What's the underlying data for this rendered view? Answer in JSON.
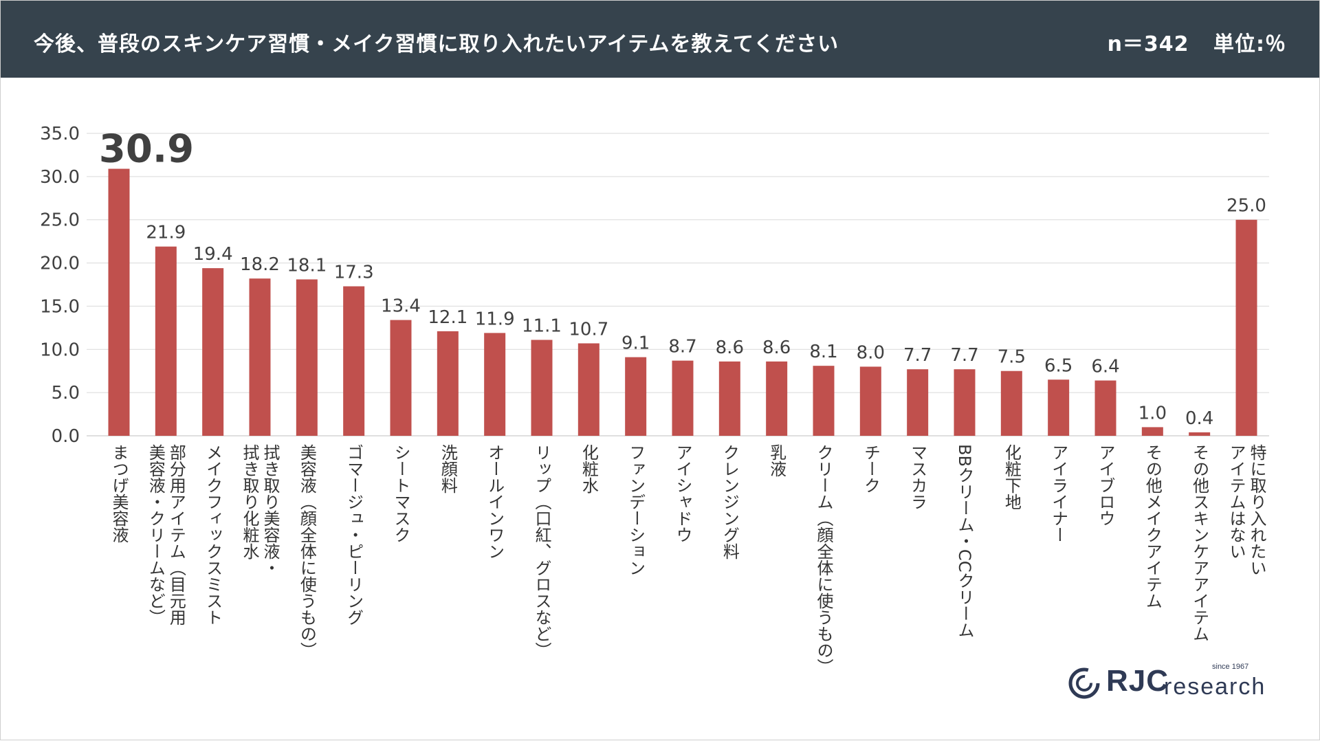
{
  "header": {
    "title": "今後、普段のスキンケア習慣・メイク習慣に取り入れたいアイテムを教えてください",
    "sample": "n＝342",
    "unit": "単位:％"
  },
  "logo": {
    "brand": "RJC",
    "sub": "research",
    "since": "since 1967"
  },
  "colors": {
    "bar": "#c0504d",
    "header_bg": "#36434d",
    "grid": "#d9d9d9"
  },
  "chart_data": {
    "type": "bar",
    "title": "今後、普段のスキンケア習慣・メイク習慣に取り入れたいアイテムを教えてください",
    "xlabel": "",
    "ylabel": "",
    "ylim": [
      0,
      35
    ],
    "yticks": [
      "0.0",
      "5.0",
      "10.0",
      "15.0",
      "20.0",
      "25.0",
      "30.0",
      "35.0"
    ],
    "grid": true,
    "categories": [
      [
        "まつげ美容液"
      ],
      [
        "部分用アイテム（目元用",
        "美容液・クリームなど）"
      ],
      [
        "メイクフィックスミスト"
      ],
      [
        "拭き取り美容液・",
        "拭き取り化粧水"
      ],
      [
        "美容液（顔全体に使うもの）"
      ],
      [
        "ゴマージュ・ピーリング"
      ],
      [
        "シートマスク"
      ],
      [
        "洗顔料"
      ],
      [
        "オールインワン"
      ],
      [
        "リップ（口紅、グロスなど）"
      ],
      [
        "化粧水"
      ],
      [
        "ファンデーション"
      ],
      [
        "アイシャドウ"
      ],
      [
        "クレンジング料"
      ],
      [
        "乳液"
      ],
      [
        "クリーム（顔全体に使うもの）"
      ],
      [
        "チーク"
      ],
      [
        "マスカラ"
      ],
      [
        "BBクリーム・CCクリーム"
      ],
      [
        "化粧下地"
      ],
      [
        "アイライナー"
      ],
      [
        "アイブロウ"
      ],
      [
        "その他メイクアイテム"
      ],
      [
        "その他スキンケアアイテム"
      ],
      [
        "特に取り入れたい",
        "アイテムはない"
      ]
    ],
    "values": [
      30.9,
      21.9,
      19.4,
      18.2,
      18.1,
      17.3,
      13.4,
      12.1,
      11.9,
      11.1,
      10.7,
      9.1,
      8.7,
      8.6,
      8.6,
      8.1,
      8.0,
      7.7,
      7.7,
      7.5,
      6.5,
      6.4,
      1.0,
      0.4,
      25.0
    ],
    "value_labels": [
      "30.9",
      "21.9",
      "19.4",
      "18.2",
      "18.1",
      "17.3",
      "13.4",
      "12.1",
      "11.9",
      "11.1",
      "10.7",
      "9.1",
      "8.7",
      "8.6",
      "8.6",
      "8.1",
      "8.0",
      "7.7",
      "7.7",
      "7.5",
      "6.5",
      "6.4",
      "1.0",
      "0.4",
      "25.0"
    ],
    "highlight_index": 0
  }
}
